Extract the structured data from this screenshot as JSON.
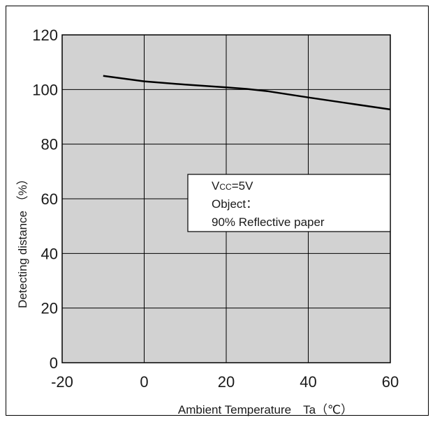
{
  "chart_data": {
    "type": "line",
    "title": "",
    "xlabel": "Ambient Temperature　Ta（℃）",
    "ylabel": "Detecting distance （%）",
    "xlim": [
      -20,
      60
    ],
    "ylim": [
      0,
      120
    ],
    "x_ticks": [
      -20,
      0,
      20,
      40,
      60
    ],
    "y_ticks": [
      0,
      20,
      40,
      60,
      80,
      100,
      120
    ],
    "grid": true,
    "colors": {
      "plot_bg": "#d2d2d2",
      "line": "#000000",
      "grid": "#000000"
    },
    "series": [
      {
        "x": [
          -10,
          0,
          10,
          20,
          25,
          30,
          40,
          50,
          60
        ],
        "y": [
          105,
          103,
          101.8,
          100.8,
          100.2,
          99.4,
          97.1,
          94.9,
          92.7
        ]
      }
    ],
    "annotation_lines": [
      "Vcc=5V",
      "Object：",
      "90% Reflective paper"
    ]
  }
}
